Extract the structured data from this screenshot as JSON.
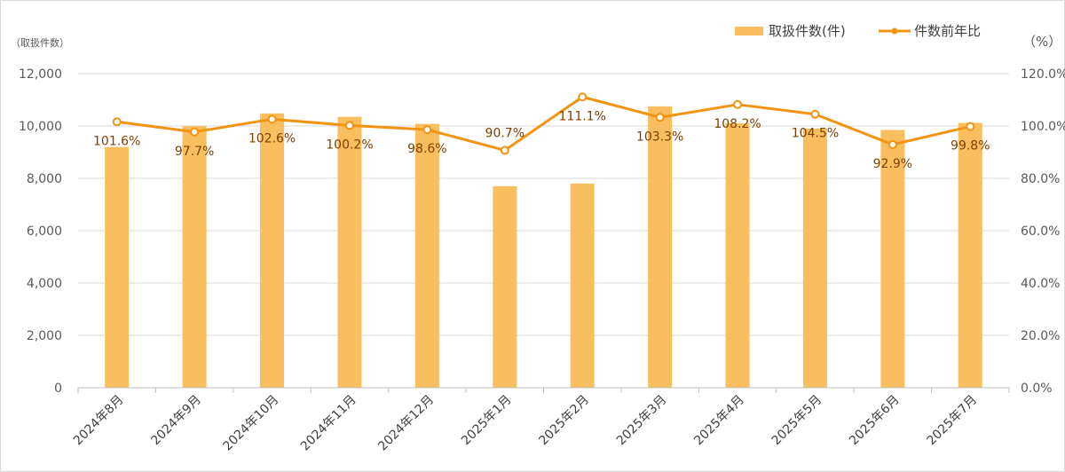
{
  "chart_data": {
    "type": "bar+line",
    "categories": [
      "2024年8月",
      "2024年9月",
      "2024年10月",
      "2024年11月",
      "2024年12月",
      "2025年1月",
      "2025年2月",
      "2025年3月",
      "2025年4月",
      "2025年5月",
      "2025年6月",
      "2025年7月"
    ],
    "left_axis": {
      "unit_label": "（取扱件数）",
      "ylim": [
        0,
        12000
      ],
      "ticks": [
        "0",
        "2,000",
        "4,000",
        "6,000",
        "8,000",
        "10,000",
        "12,000"
      ]
    },
    "right_axis": {
      "unit_label": "（%）",
      "ylim": [
        0,
        120
      ],
      "ticks": [
        "0.0%",
        "20.0%",
        "40.0%",
        "60.0%",
        "80.0%",
        "100.0%",
        "120.0%"
      ]
    },
    "series": [
      {
        "name": "取扱件数(件)",
        "type": "bar",
        "color": "#F9BE5E",
        "values": [
          9200,
          10000,
          10480,
          10350,
          10080,
          7700,
          7800,
          10750,
          10100,
          9900,
          9850,
          10120
        ]
      },
      {
        "name": "件数前年比",
        "type": "line",
        "color": "#F39312",
        "values": [
          101.6,
          97.7,
          102.6,
          100.2,
          98.6,
          90.7,
          111.1,
          103.3,
          108.2,
          104.5,
          92.9,
          99.8
        ],
        "labels": [
          "101.6%",
          "97.7%",
          "102.6%",
          "100.2%",
          "98.6%",
          "90.7%",
          "111.1%",
          "103.3%",
          "108.2%",
          "104.5%",
          "92.9%",
          "99.8%"
        ]
      }
    ],
    "legend": {
      "placement": "top-right"
    },
    "grid": true
  }
}
